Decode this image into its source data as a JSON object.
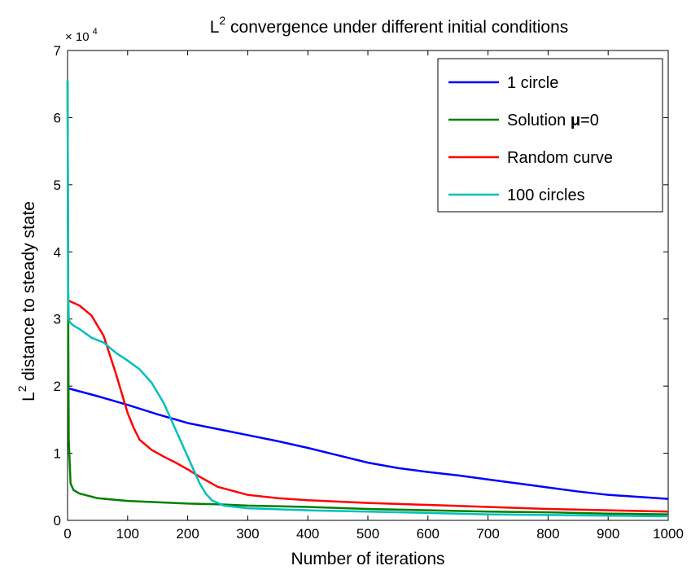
{
  "chart_data": {
    "type": "line",
    "title": {
      "prefix": "L",
      "superscript": "2",
      "rest": " convergence under different initial conditions"
    },
    "xlabel": "Number of iterations",
    "ylabel": {
      "prefix": "L",
      "superscript": "2",
      "rest": " distance to steady state"
    },
    "y_multiplier": {
      "base": "× 10",
      "exponent": "4"
    },
    "xlim": [
      0,
      1000
    ],
    "ylim": [
      0,
      7
    ],
    "xticks": [
      0,
      100,
      200,
      300,
      400,
      500,
      600,
      700,
      800,
      900,
      1000
    ],
    "yticks": [
      0,
      1,
      2,
      3,
      4,
      5,
      6,
      7
    ],
    "grid": false,
    "legend_position": "top-right",
    "legend_mu_symbol": "μ",
    "series": [
      {
        "name": "1 circle",
        "color": "#0000ff",
        "x": [
          0,
          50,
          100,
          150,
          200,
          250,
          300,
          350,
          400,
          450,
          500,
          550,
          600,
          650,
          700,
          750,
          800,
          850,
          900,
          950,
          1000
        ],
        "y": [
          1.97,
          1.85,
          1.72,
          1.58,
          1.45,
          1.36,
          1.27,
          1.18,
          1.08,
          0.97,
          0.86,
          0.78,
          0.72,
          0.67,
          0.61,
          0.55,
          0.49,
          0.43,
          0.38,
          0.35,
          0.32
        ]
      },
      {
        "name": "Solution μ=0",
        "color": "#008000",
        "x": [
          0,
          0.5,
          1,
          2,
          5,
          10,
          20,
          50,
          100,
          150,
          200,
          250,
          300,
          400,
          500,
          600,
          700,
          800,
          900,
          1000
        ],
        "y": [
          6.55,
          5.2,
          3.2,
          1.2,
          0.55,
          0.45,
          0.4,
          0.33,
          0.29,
          0.27,
          0.25,
          0.24,
          0.22,
          0.2,
          0.17,
          0.15,
          0.13,
          0.12,
          0.1,
          0.09
        ]
      },
      {
        "name": "Random curve",
        "color": "#ff0000",
        "x": [
          0,
          20,
          40,
          60,
          80,
          90,
          100,
          110,
          120,
          140,
          160,
          180,
          200,
          220,
          250,
          300,
          350,
          400,
          500,
          600,
          700,
          800,
          900,
          1000
        ],
        "y": [
          3.28,
          3.2,
          3.05,
          2.75,
          2.2,
          1.9,
          1.6,
          1.38,
          1.2,
          1.05,
          0.95,
          0.86,
          0.76,
          0.65,
          0.5,
          0.38,
          0.33,
          0.3,
          0.26,
          0.23,
          0.2,
          0.17,
          0.15,
          0.13
        ]
      },
      {
        "name": "100 circles",
        "color": "#00bfbf",
        "x": [
          0,
          0.5,
          1,
          2,
          4,
          10,
          20,
          40,
          60,
          80,
          100,
          120,
          140,
          160,
          180,
          200,
          210,
          220,
          230,
          240,
          260,
          300,
          400,
          500,
          600,
          700,
          800,
          900,
          1000
        ],
        "y": [
          6.55,
          5.0,
          3.5,
          3.0,
          2.95,
          2.9,
          2.85,
          2.72,
          2.65,
          2.5,
          2.38,
          2.25,
          2.05,
          1.75,
          1.35,
          0.95,
          0.75,
          0.55,
          0.4,
          0.3,
          0.22,
          0.18,
          0.15,
          0.13,
          0.11,
          0.09,
          0.08,
          0.07,
          0.06
        ]
      }
    ]
  }
}
